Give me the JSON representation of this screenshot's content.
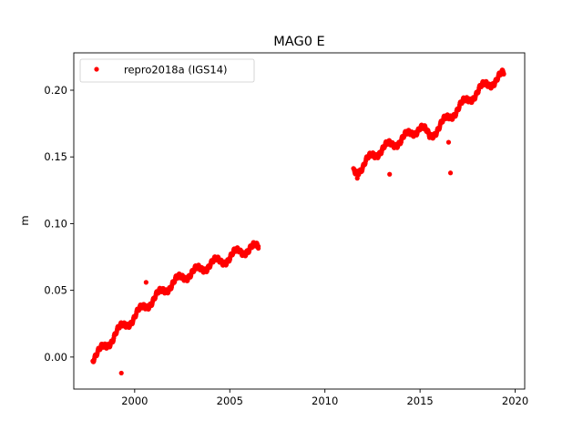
{
  "chart_data": {
    "type": "scatter",
    "title": "MAG0 E",
    "xlabel": "",
    "ylabel": "m",
    "xlim": [
      1996.8,
      2020.5
    ],
    "ylim": [
      -0.024,
      0.228
    ],
    "xticks": [
      2000,
      2005,
      2010,
      2015,
      2020
    ],
    "xtick_labels": [
      "2000",
      "2005",
      "2010",
      "2015",
      "2020"
    ],
    "yticks": [
      0.0,
      0.05,
      0.1,
      0.15,
      0.2
    ],
    "ytick_labels": [
      "0.00",
      "0.05",
      "0.10",
      "0.15",
      "0.20"
    ],
    "grid": false,
    "legend": {
      "placement": "top-left",
      "entries": [
        "repro2018a (IGS14)"
      ]
    },
    "series": [
      {
        "name": "repro2018a (IGS14)",
        "color": "#ff0000",
        "segments": [
          [
            [
              1997.8,
              0.0
            ],
            [
              1998.5,
              0.008
            ],
            [
              1999.0,
              0.018
            ],
            [
              1999.5,
              0.024
            ],
            [
              2000.0,
              0.03
            ],
            [
              2000.5,
              0.038
            ],
            [
              2001.0,
              0.043
            ],
            [
              2001.5,
              0.05
            ],
            [
              2002.0,
              0.055
            ],
            [
              2002.5,
              0.06
            ],
            [
              2003.0,
              0.063
            ],
            [
              2003.5,
              0.066
            ],
            [
              2004.0,
              0.07
            ],
            [
              2004.5,
              0.072
            ],
            [
              2005.0,
              0.074
            ],
            [
              2005.5,
              0.08
            ],
            [
              2006.0,
              0.08
            ],
            [
              2006.5,
              0.083
            ]
          ],
          [
            [
              2011.5,
              0.14
            ],
            [
              2012.0,
              0.142
            ],
            [
              2012.5,
              0.152
            ],
            [
              2013.0,
              0.155
            ],
            [
              2013.5,
              0.16
            ],
            [
              2014.0,
              0.162
            ],
            [
              2014.5,
              0.168
            ],
            [
              2015.0,
              0.172
            ],
            [
              2015.5,
              0.166
            ],
            [
              2016.0,
              0.172
            ],
            [
              2016.5,
              0.18
            ],
            [
              2017.0,
              0.186
            ],
            [
              2017.5,
              0.193
            ],
            [
              2018.0,
              0.198
            ],
            [
              2018.5,
              0.205
            ],
            [
              2019.0,
              0.207
            ],
            [
              2019.4,
              0.212
            ]
          ]
        ],
        "outliers": [
          [
            1999.3,
            -0.012
          ],
          [
            2000.6,
            0.056
          ],
          [
            2013.4,
            0.137
          ],
          [
            2016.5,
            0.161
          ],
          [
            2016.6,
            0.138
          ],
          [
            2011.7,
            0.134
          ]
        ]
      }
    ]
  }
}
